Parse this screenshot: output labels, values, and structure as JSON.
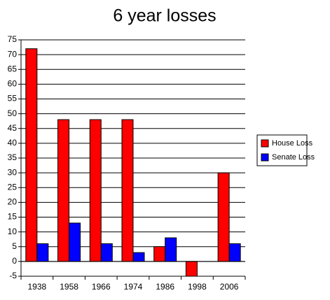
{
  "chart_data": {
    "type": "bar",
    "title": "6 year losses",
    "categories": [
      "1938",
      "1958",
      "1966",
      "1974",
      "1986",
      "1998",
      "2006"
    ],
    "series": [
      {
        "name": "House Loss",
        "color": "#ff0000",
        "values": [
          72,
          48,
          48,
          48,
          5,
          -5,
          30
        ]
      },
      {
        "name": "Senate Loss",
        "color": "#0000ff",
        "values": [
          6,
          13,
          6,
          3,
          8,
          0,
          6
        ]
      }
    ],
    "ylim": [
      -5,
      75
    ],
    "yticks": [
      -5,
      0,
      5,
      10,
      15,
      20,
      25,
      30,
      35,
      40,
      45,
      50,
      55,
      60,
      65,
      70,
      75
    ],
    "grid": true,
    "legend": "right"
  }
}
